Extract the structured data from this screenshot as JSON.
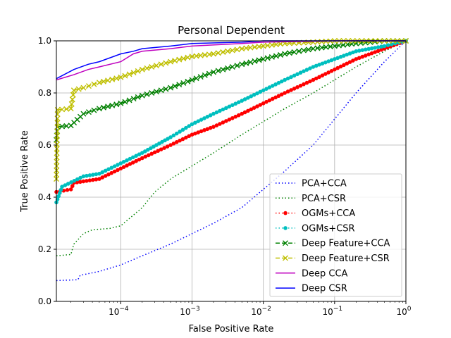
{
  "chart_data": {
    "type": "line",
    "title": "Personal Dependent",
    "xlabel": "False Positive Rate",
    "ylabel": "True Positive Rate",
    "xscale": "log",
    "xlim": [
      1.25e-05,
      1
    ],
    "ylim": [
      0,
      1
    ],
    "grid": true,
    "legend_position": "lower-right",
    "x_ticks": [
      {
        "value": 0.0001,
        "base": "10",
        "exp": "−4"
      },
      {
        "value": 0.001,
        "base": "10",
        "exp": "−3"
      },
      {
        "value": 0.01,
        "base": "10",
        "exp": "−2"
      },
      {
        "value": 0.1,
        "base": "10",
        "exp": "−1"
      },
      {
        "value": 1,
        "base": "10",
        "exp": "0"
      }
    ],
    "y_ticks": [
      "0.0",
      "0.2",
      "0.4",
      "0.6",
      "0.8",
      "1.0"
    ],
    "y_tick_values": [
      0,
      0.2,
      0.4,
      0.6,
      0.8,
      1.0
    ],
    "series": [
      {
        "name": "PCA+CCA",
        "color": "#0000ff",
        "dash": "1.5,3",
        "marker": "none",
        "x": [
          1.25e-05,
          2.5e-05,
          2.7e-05,
          5e-05,
          0.0001,
          0.0002,
          0.0005,
          0.001,
          0.002,
          0.005,
          0.01,
          0.02,
          0.05,
          0.1,
          0.2,
          0.5,
          1
        ],
        "y": [
          0.08,
          0.083,
          0.1,
          0.115,
          0.14,
          0.175,
          0.22,
          0.26,
          0.3,
          0.36,
          0.43,
          0.5,
          0.6,
          0.7,
          0.8,
          0.92,
          1.0
        ]
      },
      {
        "name": "PCA+CSR",
        "color": "#008000",
        "dash": "1.5,3",
        "marker": "none",
        "x": [
          1.25e-05,
          2e-05,
          2.2e-05,
          3e-05,
          4e-05,
          7e-05,
          0.0001,
          0.0002,
          0.0003,
          0.0005,
          0.001,
          0.002,
          0.005,
          0.01,
          0.02,
          0.05,
          0.1,
          0.2,
          0.5,
          1
        ],
        "y": [
          0.175,
          0.18,
          0.22,
          0.26,
          0.275,
          0.28,
          0.29,
          0.36,
          0.42,
          0.47,
          0.52,
          0.57,
          0.64,
          0.69,
          0.74,
          0.8,
          0.85,
          0.9,
          0.96,
          1.0
        ]
      },
      {
        "name": "OGMs+CCA",
        "color": "#ff0000",
        "dash": "1.5,3",
        "marker": "circle",
        "x": [
          1.25e-05,
          2e-05,
          2.2e-05,
          5e-05,
          0.0001,
          0.0002,
          0.0005,
          0.001,
          0.002,
          0.005,
          0.01,
          0.02,
          0.05,
          0.1,
          0.2,
          0.5,
          1
        ],
        "y": [
          0.42,
          0.43,
          0.455,
          0.47,
          0.51,
          0.55,
          0.6,
          0.64,
          0.67,
          0.72,
          0.76,
          0.8,
          0.85,
          0.89,
          0.93,
          0.97,
          1.0
        ]
      },
      {
        "name": "OGMs+CSR",
        "color": "#00bfbf",
        "dash": "1.5,3",
        "marker": "circle",
        "x": [
          1.25e-05,
          1.5e-05,
          3e-05,
          5e-05,
          0.0001,
          0.0002,
          0.0005,
          0.001,
          0.002,
          0.005,
          0.01,
          0.02,
          0.05,
          0.1,
          0.2,
          0.5,
          1
        ],
        "y": [
          0.38,
          0.44,
          0.48,
          0.49,
          0.53,
          0.57,
          0.63,
          0.68,
          0.72,
          0.77,
          0.81,
          0.85,
          0.9,
          0.93,
          0.96,
          0.98,
          1.0
        ]
      },
      {
        "name": "Deep Feature+CCA",
        "color": "#008000",
        "dash": "6,3",
        "marker": "x",
        "x": [
          1.25e-05,
          1.3e-05,
          2e-05,
          3e-05,
          5e-05,
          0.0001,
          0.0002,
          0.0005,
          0.001,
          0.002,
          0.005,
          0.01,
          0.02,
          0.05,
          0.1,
          0.2,
          0.5,
          1
        ],
        "y": [
          0.62,
          0.67,
          0.675,
          0.72,
          0.74,
          0.76,
          0.79,
          0.82,
          0.85,
          0.88,
          0.91,
          0.93,
          0.95,
          0.97,
          0.98,
          0.99,
          1.0,
          1.0
        ]
      },
      {
        "name": "Deep Feature+CSR",
        "color": "#bfbf00",
        "dash": "6,3",
        "marker": "x",
        "x": [
          1.25e-05,
          1.3e-05,
          2e-05,
          2.2e-05,
          3e-05,
          5e-05,
          0.0001,
          0.0002,
          0.0005,
          0.001,
          0.002,
          0.005,
          0.01,
          0.02,
          0.05,
          0.1,
          0.5,
          1
        ],
        "y": [
          0.47,
          0.735,
          0.74,
          0.81,
          0.82,
          0.84,
          0.86,
          0.89,
          0.92,
          0.94,
          0.95,
          0.97,
          0.98,
          0.99,
          0.995,
          1.0,
          1.0,
          1.0
        ]
      },
      {
        "name": "Deep CCA",
        "color": "#bf00bf",
        "dash": "",
        "marker": "none",
        "x": [
          1.25e-05,
          2.2e-05,
          3.5e-05,
          5e-05,
          0.0001,
          0.00015,
          0.0002,
          0.0005,
          0.001,
          0.005,
          0.01,
          0.1,
          1
        ],
        "y": [
          0.85,
          0.87,
          0.89,
          0.9,
          0.92,
          0.95,
          0.96,
          0.97,
          0.98,
          0.99,
          0.995,
          1.0,
          1.0
        ]
      },
      {
        "name": "Deep CSR",
        "color": "#0000ff",
        "dash": "",
        "marker": "none",
        "x": [
          1.25e-05,
          2.2e-05,
          3.5e-05,
          5e-05,
          0.0001,
          0.00015,
          0.0002,
          0.0005,
          0.001,
          0.005,
          0.01,
          0.1,
          1
        ],
        "y": [
          0.855,
          0.89,
          0.91,
          0.92,
          0.95,
          0.96,
          0.97,
          0.98,
          0.99,
          0.995,
          1.0,
          1.0,
          1.0
        ]
      }
    ]
  }
}
